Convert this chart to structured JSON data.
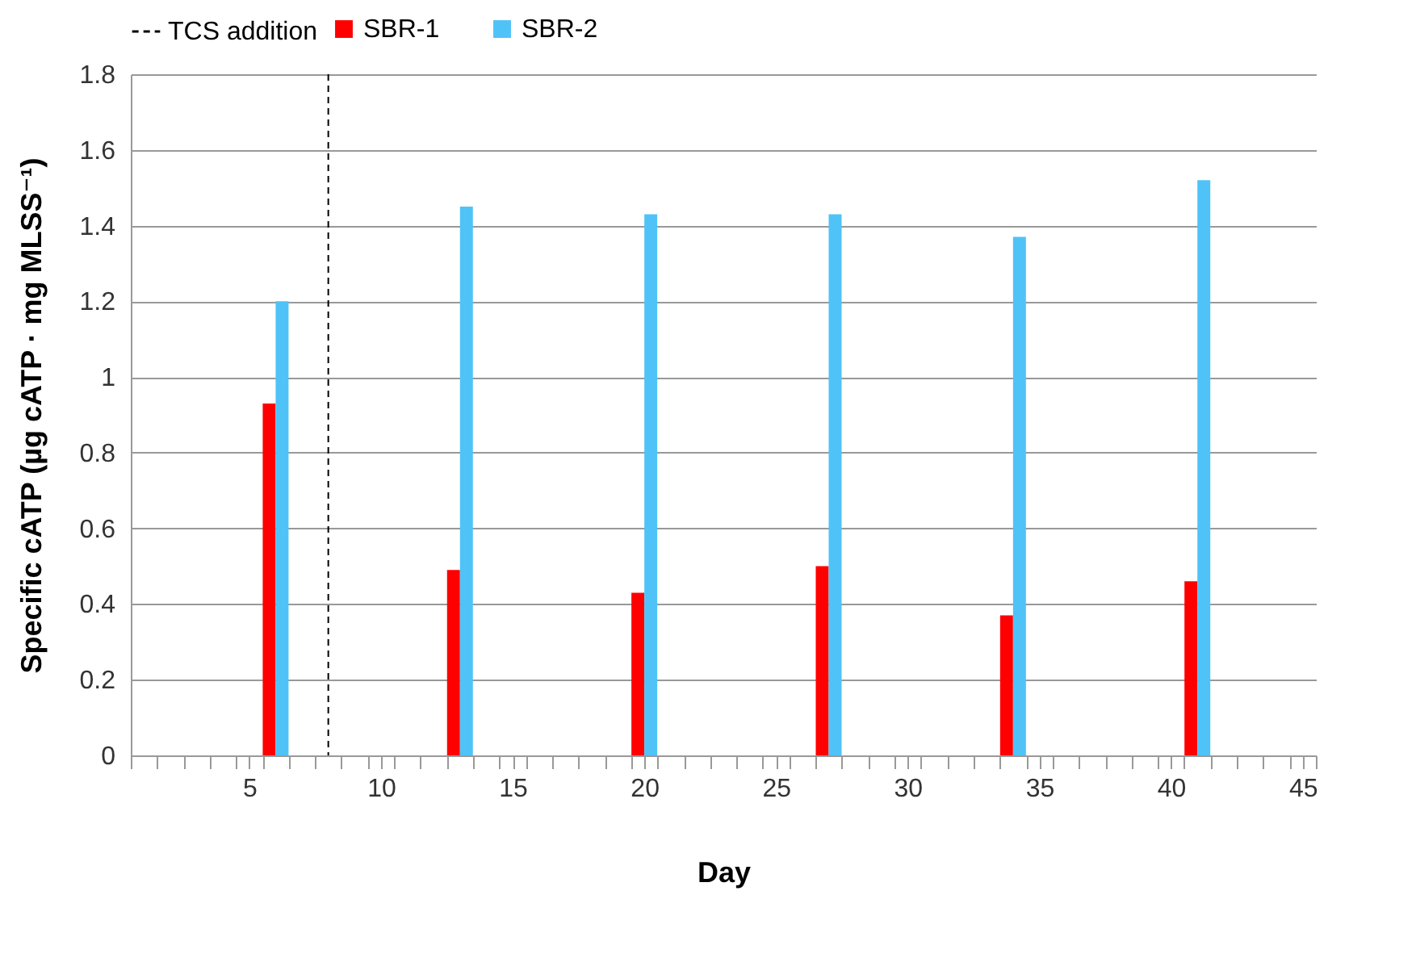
{
  "chart_data": {
    "type": "bar",
    "xlabel": "Day",
    "ylabel": "Specific cATP (µg cATP · mg MLSS⁻¹)",
    "x": [
      6,
      13,
      20,
      27,
      34,
      41
    ],
    "series": [
      {
        "name": "SBR-1",
        "color": "#ff0000",
        "values": [
          0.93,
          0.49,
          0.43,
          0.5,
          0.37,
          0.46
        ]
      },
      {
        "name": "SBR-2",
        "color": "#4fc3f7",
        "values": [
          1.2,
          1.45,
          1.43,
          1.43,
          1.37,
          1.52
        ]
      }
    ],
    "xlim": [
      0.5,
      45.5
    ],
    "xticks": [
      5,
      10,
      15,
      20,
      25,
      30,
      35,
      40,
      45,
      {
        "value": 0.5,
        "label": null
      },
      {
        "value": 1.5,
        "label": null
      },
      {
        "value": 2.5,
        "label": null
      },
      {
        "value": 3.5,
        "label": null
      },
      {
        "value": 4.5,
        "label": null
      },
      {
        "value": 5.5,
        "label": null
      },
      {
        "value": 6.5,
        "label": null
      },
      {
        "value": 7.5,
        "label": null
      },
      {
        "value": 8.5,
        "label": null
      },
      {
        "value": 9.5,
        "label": null
      },
      {
        "value": 10.5,
        "label": null
      },
      {
        "value": 11.5,
        "label": null
      },
      {
        "value": 12.5,
        "label": null
      },
      {
        "value": 13.5,
        "label": null
      },
      {
        "value": 14.5,
        "label": null
      },
      {
        "value": 15.5,
        "label": null
      },
      {
        "value": 16.5,
        "label": null
      },
      {
        "value": 17.5,
        "label": null
      },
      {
        "value": 18.5,
        "label": null
      },
      {
        "value": 19.5,
        "label": null
      },
      {
        "value": 20.5,
        "label": null
      },
      {
        "value": 21.5,
        "label": null
      },
      {
        "value": 22.5,
        "label": null
      },
      {
        "value": 23.5,
        "label": null
      },
      {
        "value": 24.5,
        "label": null
      },
      {
        "value": 25.5,
        "label": null
      },
      {
        "value": 26.5,
        "label": null
      },
      {
        "value": 27.5,
        "label": null
      },
      {
        "value": 28.5,
        "label": null
      },
      {
        "value": 29.5,
        "label": null
      },
      {
        "value": 30.5,
        "label": null
      },
      {
        "value": 31.5,
        "label": null
      },
      {
        "value": 32.5,
        "label": null
      },
      {
        "value": 33.5,
        "label": null
      },
      {
        "value": 34.5,
        "label": null
      },
      {
        "value": 35.5,
        "label": null
      },
      {
        "value": 36.5,
        "label": null
      },
      {
        "value": 37.5,
        "label": null
      },
      {
        "value": 38.5,
        "label": null
      },
      {
        "value": 39.5,
        "label": null
      },
      {
        "value": 40.5,
        "label": null
      },
      {
        "value": 41.5,
        "label": null
      },
      {
        "value": 42.5,
        "label": null
      },
      {
        "value": 43.5,
        "label": null
      },
      {
        "value": 44.5,
        "label": null
      },
      {
        "value": 45.5,
        "label": null
      }
    ],
    "ylim": [
      0,
      1.8
    ],
    "yticks": [
      0,
      0.2,
      0.4,
      0.6,
      0.8,
      1,
      1.2,
      1.4,
      1.6,
      1.8
    ],
    "grid": "y",
    "legend": "top",
    "ref_lines": [
      {
        "axis": "x",
        "value": 8,
        "label": "TCS addition",
        "color": "#000000",
        "line_style": "dashed"
      }
    ]
  }
}
